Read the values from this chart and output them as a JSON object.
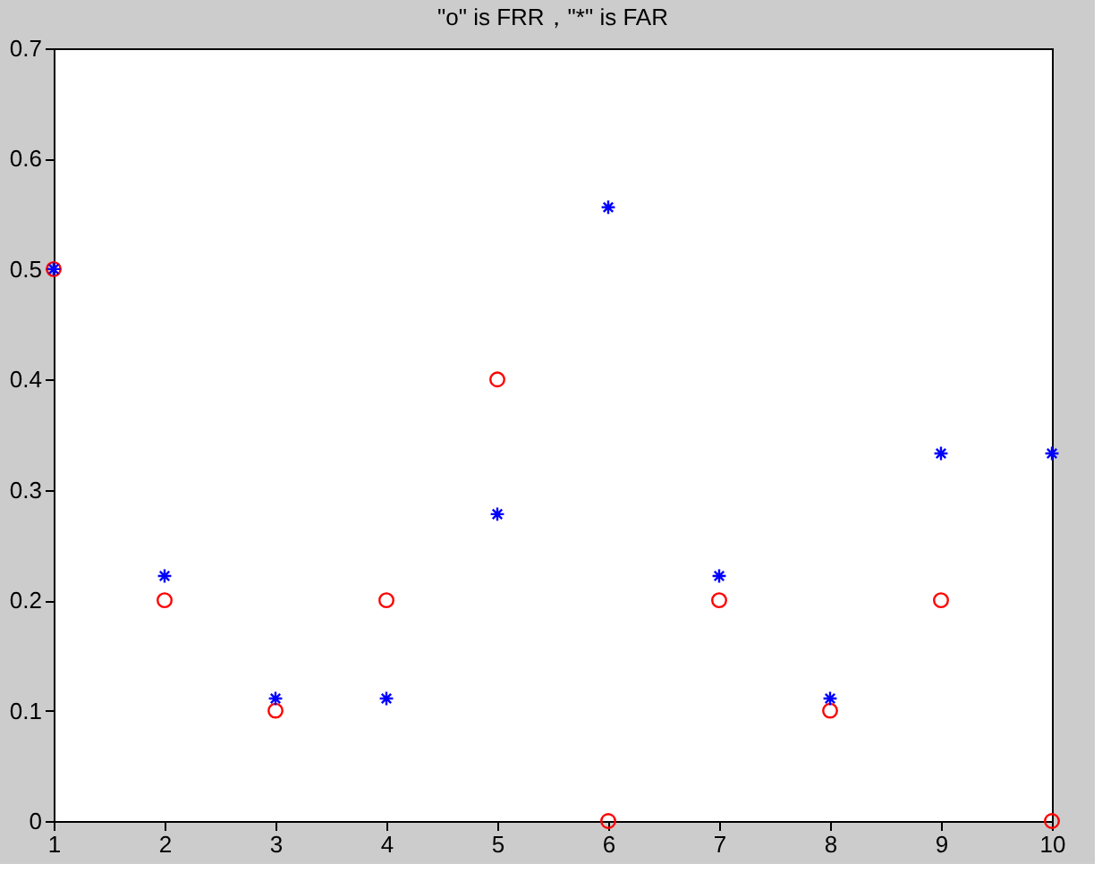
{
  "chart_data": {
    "type": "scatter",
    "title": "\"o\" is FRR，\"*\" is FAR",
    "x": [
      1,
      2,
      3,
      4,
      5,
      6,
      7,
      8,
      9,
      10
    ],
    "series": [
      {
        "color": "#ff0000",
        "marker": "circle",
        "values": [
          0.5,
          0.2,
          0.1,
          0.2,
          0.4,
          0,
          0.2,
          0.1,
          0.2,
          0
        ]
      },
      {
        "color": "#0000ff",
        "marker": "cross",
        "values": [
          0.5,
          0.222,
          0.111,
          0.111,
          0.278,
          0.556,
          0.222,
          0.111,
          0.333,
          0.333
        ]
      }
    ],
    "xlim": [
      1,
      10
    ],
    "xticks": [
      1,
      2,
      3,
      4,
      5,
      6,
      7,
      8,
      9,
      10
    ],
    "ylim": [
      0,
      0.7
    ],
    "yticks": [
      0,
      0.1,
      0.2,
      0.3,
      0.4,
      0.5,
      0.6,
      0.7
    ],
    "grid": false
  }
}
